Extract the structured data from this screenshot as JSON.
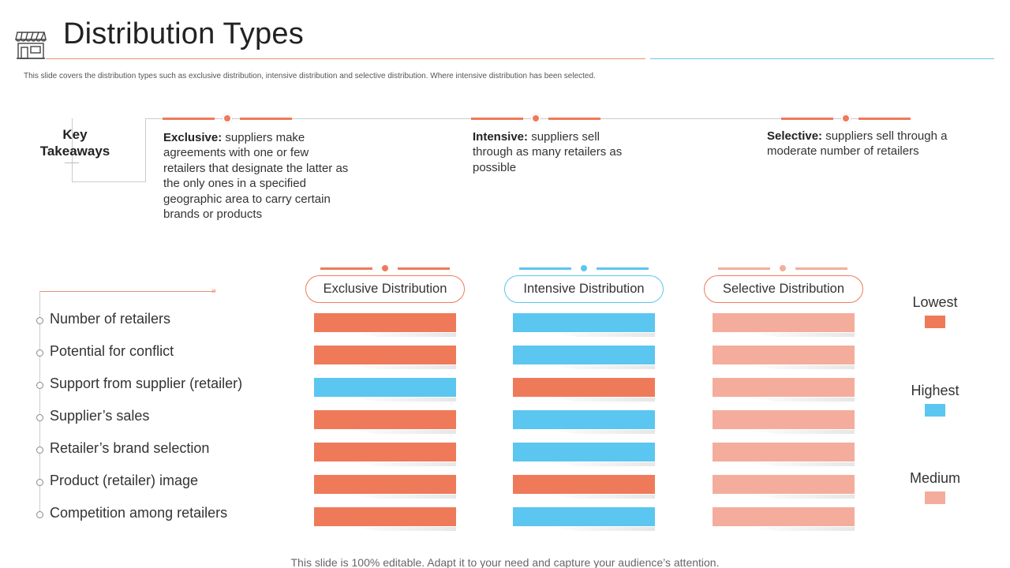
{
  "header": {
    "title": "Distribution Types",
    "subtitle": "This slide covers the distribution types such as exclusive distribution, intensive distribution and selective distribution. Where intensive distribution has been selected.",
    "icon": "store-icon"
  },
  "key_takeaways": {
    "label_line1": "Key",
    "label_line2": "Takeaways",
    "items": [
      {
        "term": "Exclusive:",
        "text": " suppliers make agreements with one or few retailers that designate the latter as the only ones in a specified geographic area to carry certain brands or products",
        "color": "#ef7a5a"
      },
      {
        "term": "Intensive:",
        "text": " suppliers sell through as many retailers as possible",
        "color": "#ef7a5a"
      },
      {
        "term": "Selective:",
        "text": " suppliers sell through a moderate number of retailers",
        "color": "#ef7a5a"
      }
    ]
  },
  "table": {
    "columns": [
      {
        "label": "Exclusive Distribution",
        "border": "#ef7a5a",
        "accent": "#ef7a5a"
      },
      {
        "label": "Intensive Distribution",
        "border": "#5bc6ef",
        "accent": "#5bc6ef"
      },
      {
        "label": "Selective Distribution",
        "border": "#ef7a5a",
        "accent": "#f4ad9c"
      }
    ],
    "rows": [
      {
        "label": "Number of retailers",
        "levels": [
          "Lowest",
          "Highest",
          "Medium"
        ]
      },
      {
        "label": "Potential for conflict",
        "levels": [
          "Lowest",
          "Highest",
          "Medium"
        ]
      },
      {
        "label": "Support from supplier (retailer)",
        "levels": [
          "Highest",
          "Lowest",
          "Medium"
        ]
      },
      {
        "label": "Supplier’s sales",
        "levels": [
          "Lowest",
          "Highest",
          "Medium"
        ]
      },
      {
        "label": "Retailer’s brand selection",
        "levels": [
          "Lowest",
          "Highest",
          "Medium"
        ]
      },
      {
        "label": "Product (retailer) image",
        "levels": [
          "Lowest",
          "Lowest",
          "Medium"
        ]
      },
      {
        "label": "Competition among retailers",
        "levels": [
          "Lowest",
          "Highest",
          "Medium"
        ]
      }
    ]
  },
  "legend": [
    {
      "label": "Lowest",
      "color": "#ef7a5a"
    },
    {
      "label": "Highest",
      "color": "#5bc6ef"
    },
    {
      "label": "Medium",
      "color": "#f4ad9c"
    }
  ],
  "footer": "This slide is 100% editable. Adapt it to your need and capture your audience’s attention."
}
